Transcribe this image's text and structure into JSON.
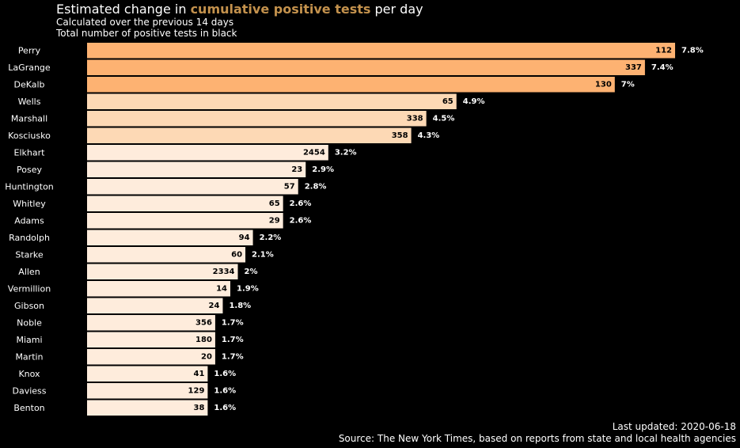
{
  "chart_data": {
    "type": "bar",
    "orientation": "horizontal",
    "title": {
      "prefix": "Estimated change in ",
      "highlight": "cumulative positive tests",
      "suffix": " per day"
    },
    "subtitle_lines": [
      "Calculated over the previous 14 days",
      "Total number of positive tests in black"
    ],
    "categories": [
      "Perry",
      "LaGrange",
      "DeKalb",
      "Wells",
      "Marshall",
      "Kosciusko",
      "Elkhart",
      "Posey",
      "Huntington",
      "Whitley",
      "Adams",
      "Randolph",
      "Starke",
      "Allen",
      "Vermillion",
      "Gibson",
      "Noble",
      "Miami",
      "Martin",
      "Knox",
      "Daviess",
      "Benton"
    ],
    "values": [
      7.8,
      7.4,
      7.0,
      4.9,
      4.5,
      4.3,
      3.2,
      2.9,
      2.8,
      2.6,
      2.6,
      2.2,
      2.1,
      2.0,
      1.9,
      1.8,
      1.7,
      1.7,
      1.7,
      1.6,
      1.6,
      1.6
    ],
    "value_labels": [
      "7.8%",
      "7.4%",
      "7%",
      "4.9%",
      "4.5%",
      "4.3%",
      "3.2%",
      "2.9%",
      "2.8%",
      "2.6%",
      "2.6%",
      "2.2%",
      "2.1%",
      "2%",
      "1.9%",
      "1.8%",
      "1.7%",
      "1.7%",
      "1.7%",
      "1.6%",
      "1.6%",
      "1.6%"
    ],
    "totals": [
      112,
      337,
      130,
      65,
      338,
      358,
      2454,
      23,
      57,
      65,
      29,
      94,
      60,
      2334,
      14,
      24,
      356,
      180,
      20,
      41,
      129,
      38
    ],
    "xlim": [
      0,
      7.8
    ],
    "grid": false,
    "legend": false,
    "colors": {
      "background": "#000000",
      "text": "#ffffff",
      "highlight": "#c4924d",
      "total_text": "#000000",
      "bar_high": "#fdb272",
      "bar_mid": "#fdd9b5",
      "bar_low": "#feecdc"
    },
    "footer": {
      "updated": "Last updated: 2020-06-18",
      "source": "Source: The New York Times, based on reports from state and local health agencies"
    }
  }
}
